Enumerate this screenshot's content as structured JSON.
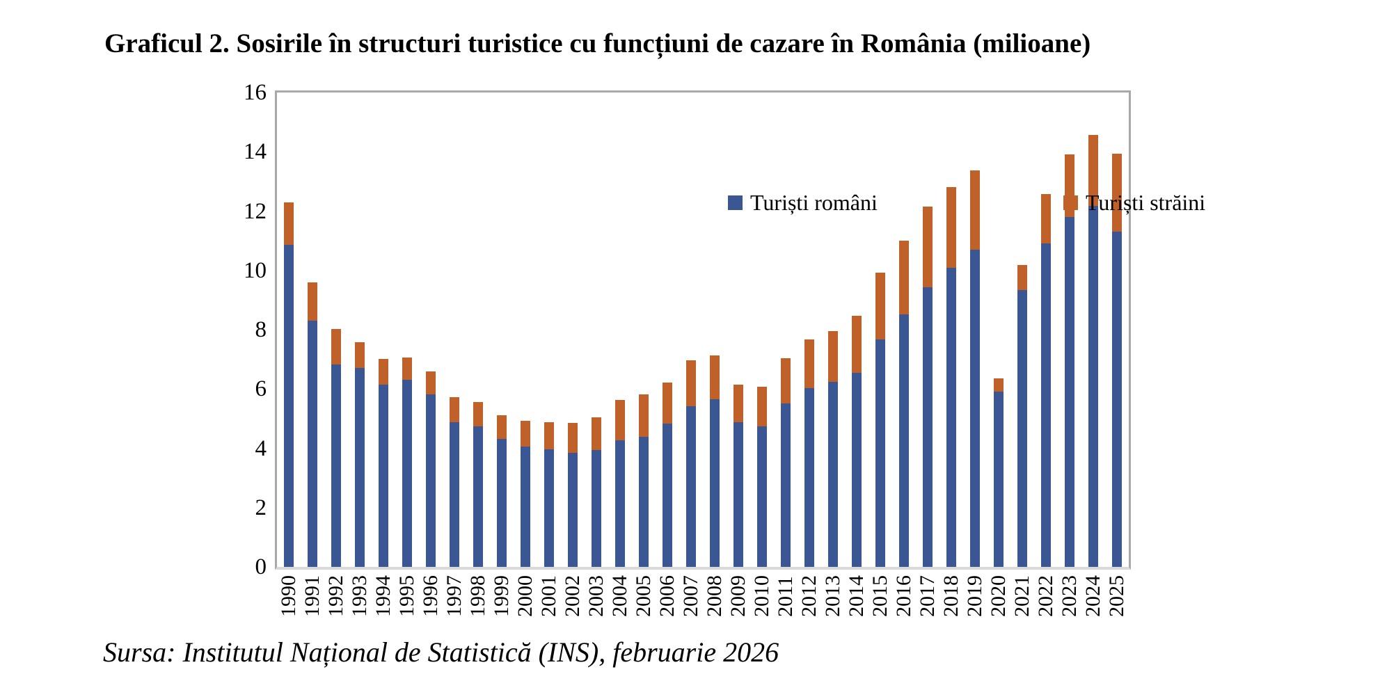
{
  "title": "Graficul 2. Sosirile în structuri turistice cu funcțiuni de cazare în România (milioane)",
  "source": "Sursa: Institutul Național de Statistică (INS), februarie 2026",
  "legend": {
    "series1_label": "Turiști români",
    "series2_label": "Turiști străini"
  },
  "colors": {
    "romani": "#3a5794",
    "straini": "#bf6128",
    "plot_border": "#a8a8a8",
    "axis_line": "#d9d9d9",
    "text": "#000000"
  },
  "y_axis": {
    "min": 0,
    "max": 16,
    "step": 2,
    "ticks": [
      "0",
      "2",
      "4",
      "6",
      "8",
      "10",
      "12",
      "14",
      "16"
    ]
  },
  "chart_data": {
    "type": "bar",
    "stacked": true,
    "title": "Graficul 2. Sosirile în structuri turistice cu funcțiuni de cazare în România (milioane)",
    "xlabel": "",
    "ylabel": "",
    "ylim": [
      0,
      16
    ],
    "grid": false,
    "legend_position": "top-inside",
    "categories": [
      "1990",
      "1991",
      "1992",
      "1993",
      "1994",
      "1995",
      "1996",
      "1997",
      "1998",
      "1999",
      "2000",
      "2001",
      "2002",
      "2003",
      "2004",
      "2005",
      "2006",
      "2007",
      "2008",
      "2009",
      "2010",
      "2011",
      "2012",
      "2013",
      "2014",
      "2015",
      "2016",
      "2017",
      "2018",
      "2019",
      "2020",
      "2021",
      "2022",
      "2023",
      "2024",
      "2025"
    ],
    "series": [
      {
        "name": "Turiști români",
        "color": "#3a5794",
        "values": [
          10.87,
          8.31,
          6.83,
          6.72,
          6.15,
          6.3,
          5.83,
          4.89,
          4.74,
          4.31,
          4.05,
          3.96,
          3.85,
          3.95,
          4.28,
          4.38,
          4.84,
          5.42,
          5.66,
          4.87,
          4.73,
          5.51,
          6.02,
          6.23,
          6.55,
          7.68,
          8.52,
          9.43,
          10.1,
          10.69,
          5.92,
          9.34,
          10.9,
          11.79,
          12.17,
          11.32
        ]
      },
      {
        "name": "Turiști străini",
        "color": "#bf6128",
        "values": [
          1.43,
          1.29,
          1.19,
          0.85,
          0.86,
          0.77,
          0.76,
          0.83,
          0.81,
          0.8,
          0.87,
          0.92,
          1.0,
          1.1,
          1.36,
          1.43,
          1.38,
          1.55,
          1.47,
          1.28,
          1.34,
          1.52,
          1.66,
          1.72,
          1.91,
          2.24,
          2.48,
          2.72,
          2.71,
          2.68,
          0.45,
          0.85,
          1.67,
          2.13,
          2.41,
          2.62
        ]
      }
    ]
  }
}
